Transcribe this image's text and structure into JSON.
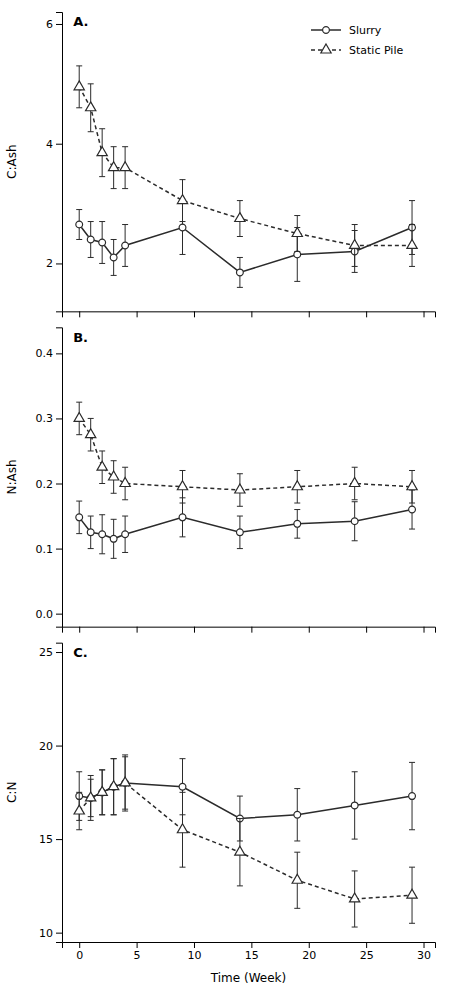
{
  "chart_data": [
    {
      "type": "line",
      "title": "A.",
      "y_label": "C:Ash",
      "x": [
        0,
        1,
        2,
        3,
        4,
        9,
        14,
        19,
        24,
        29
      ],
      "xlim": [
        -1.5,
        31
      ],
      "xticks": [
        0,
        5,
        10,
        15,
        20,
        25,
        30
      ],
      "ylim": [
        1.2,
        6.2
      ],
      "yticks": [
        2,
        4,
        6
      ],
      "grid": false,
      "legend": "upper right",
      "tick_labels": "y",
      "series": [
        {
          "name": "Slurry",
          "color": "#2b2b2b",
          "marker": "circle",
          "line_style": "solid",
          "values": [
            2.65,
            2.4,
            2.35,
            2.1,
            2.3,
            2.6,
            1.85,
            2.15,
            2.2,
            2.6
          ],
          "errors": [
            0.25,
            0.3,
            0.35,
            0.3,
            0.35,
            0.45,
            0.25,
            0.45,
            0.35,
            0.45
          ]
        },
        {
          "name": "Static Pile",
          "color": "#2b2b2b",
          "marker": "triangle",
          "line_style": "dashed",
          "values": [
            4.95,
            4.6,
            3.85,
            3.6,
            3.6,
            3.05,
            2.75,
            2.5,
            2.3,
            2.3
          ],
          "errors": [
            0.35,
            0.4,
            0.4,
            0.35,
            0.35,
            0.35,
            0.3,
            0.3,
            0.35,
            0.35
          ]
        }
      ]
    },
    {
      "type": "line",
      "title": "B.",
      "y_label": "N:Ash",
      "x": [
        0,
        1,
        2,
        3,
        4,
        9,
        14,
        19,
        24,
        29
      ],
      "xlim": [
        -1.5,
        31
      ],
      "xticks": [
        0,
        5,
        10,
        15,
        20,
        25,
        30
      ],
      "ylim": [
        -0.02,
        0.44
      ],
      "yticks": [
        {
          "value": 0.0,
          "label": "0.0"
        },
        0.1,
        0.2,
        0.3,
        0.4
      ],
      "grid": false,
      "tick_labels": "y",
      "series": [
        {
          "color": "#2b2b2b",
          "marker": "circle",
          "line_style": "solid",
          "values": [
            0.148,
            0.125,
            0.122,
            0.115,
            0.122,
            0.148,
            0.125,
            0.138,
            0.142,
            0.16
          ],
          "errors": [
            0.025,
            0.025,
            0.03,
            0.03,
            0.028,
            0.03,
            0.025,
            0.022,
            0.03,
            0.03
          ]
        },
        {
          "color": "#2b2b2b",
          "marker": "triangle",
          "line_style": "dashed",
          "values": [
            0.3,
            0.275,
            0.225,
            0.21,
            0.2,
            0.195,
            0.19,
            0.195,
            0.2,
            0.195
          ],
          "errors": [
            0.025,
            0.025,
            0.025,
            0.025,
            0.025,
            0.025,
            0.025,
            0.025,
            0.025,
            0.025
          ]
        }
      ]
    },
    {
      "type": "line",
      "title": "C.",
      "y_label": "C:N",
      "x_label": "Time (Week)",
      "x": [
        0,
        1,
        2,
        3,
        4,
        9,
        14,
        19,
        24,
        29
      ],
      "xlim": [
        -1.5,
        31
      ],
      "xticks": [
        0,
        5,
        10,
        15,
        20,
        25,
        30
      ],
      "ylim": [
        9.5,
        25.5
      ],
      "yticks": [
        10,
        15,
        20,
        25
      ],
      "grid": false,
      "series": [
        {
          "color": "#2b2b2b",
          "marker": "circle",
          "line_style": "solid",
          "values": [
            17.3,
            17.2,
            17.5,
            17.8,
            18.0,
            17.8,
            16.1,
            16.3,
            16.8,
            17.3
          ],
          "errors": [
            1.3,
            1.2,
            1.2,
            1.5,
            1.4,
            1.5,
            1.2,
            1.4,
            1.8,
            1.8
          ]
        },
        {
          "color": "#2b2b2b",
          "marker": "triangle",
          "line_style": "dashed",
          "values": [
            16.5,
            17.2,
            17.5,
            17.8,
            18.0,
            15.5,
            14.3,
            12.8,
            11.8,
            12.0
          ],
          "errors": [
            1.0,
            1.0,
            1.2,
            1.5,
            1.5,
            2.0,
            1.8,
            1.5,
            1.5,
            1.5
          ]
        }
      ]
    }
  ]
}
